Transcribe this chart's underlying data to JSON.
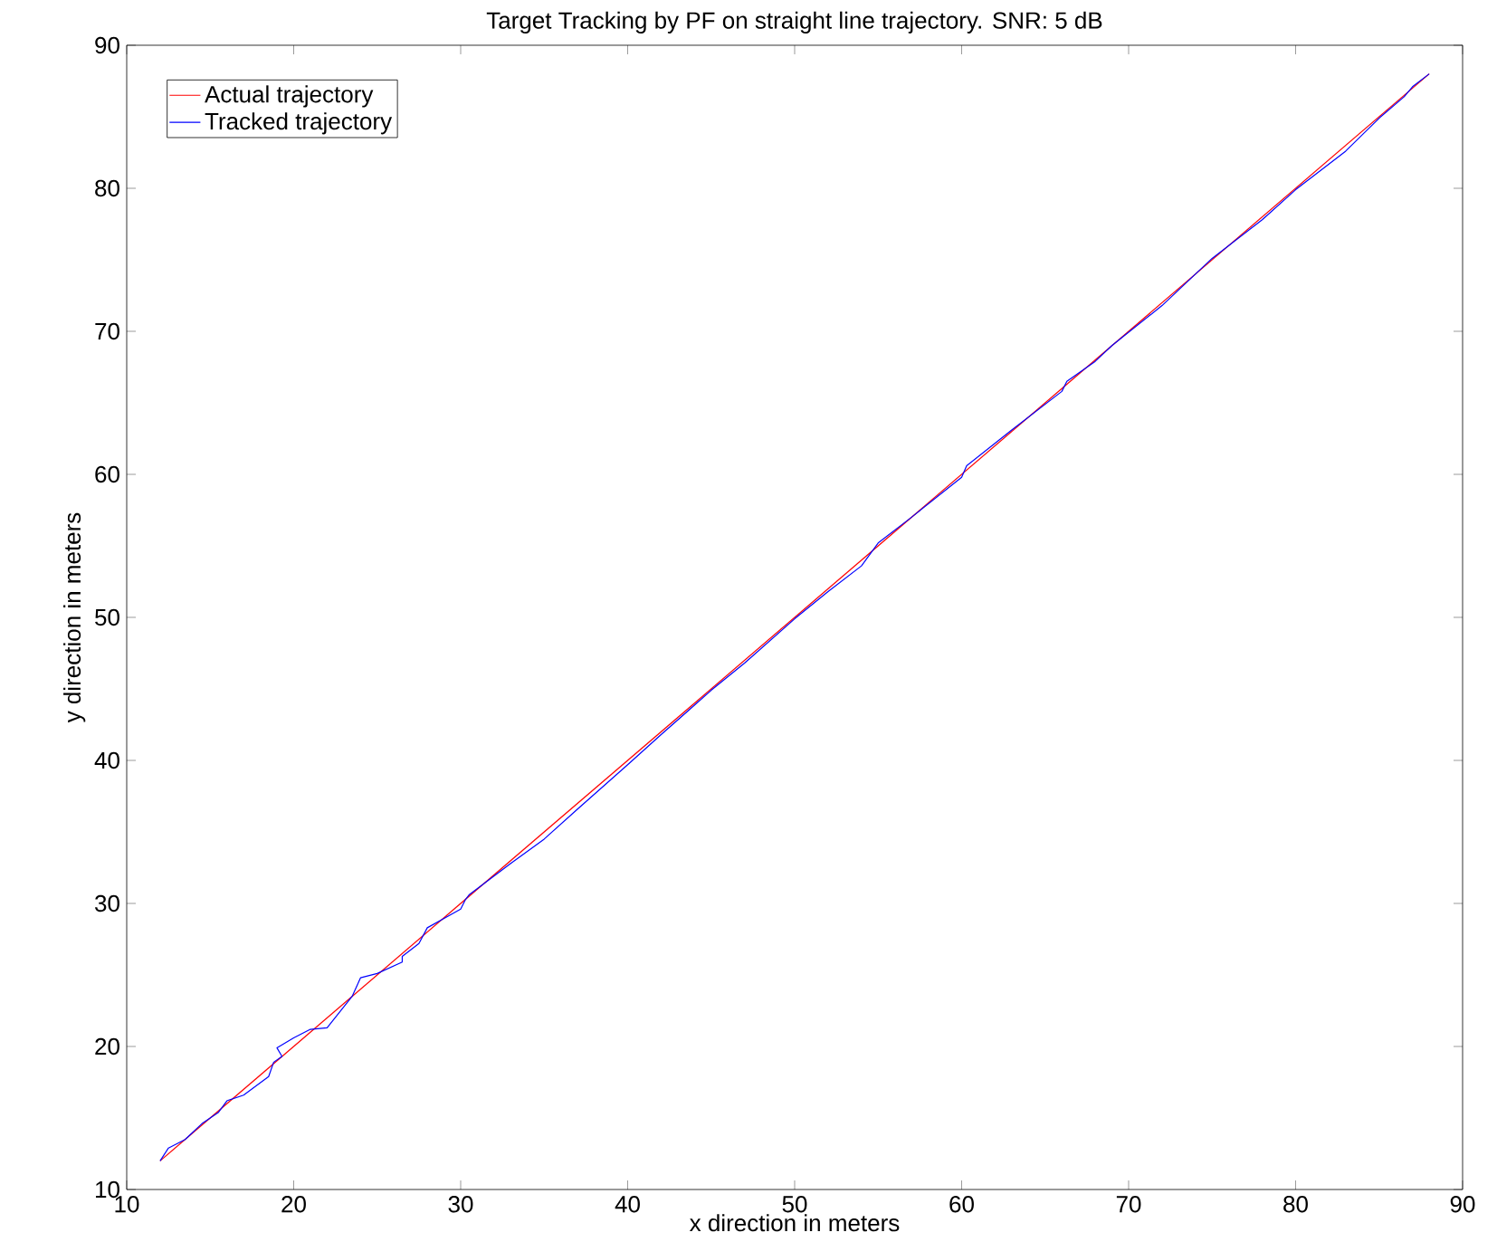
{
  "chart_data": {
    "type": "line",
    "title": "Target Tracking by PF on straight line trajectory. SNR: 5 dB",
    "xlabel": "x direction in meters",
    "ylabel": "y direction in meters",
    "xlim": [
      10,
      90
    ],
    "ylim": [
      10,
      90
    ],
    "xticks": [
      10,
      20,
      30,
      40,
      50,
      60,
      70,
      80,
      90
    ],
    "yticks": [
      10,
      20,
      30,
      40,
      50,
      60,
      70,
      80,
      90
    ],
    "legend": "top left",
    "grid": false,
    "series": [
      {
        "name": "Actual trajectory",
        "color": "#ff0000",
        "x": [
          12,
          88
        ],
        "values": [
          12,
          88
        ]
      },
      {
        "name": "Tracked trajectory",
        "color": "#0000ff",
        "x": [
          12,
          12.5,
          13.5,
          14.5,
          15.5,
          16,
          17,
          18.5,
          18.8,
          19.3,
          19,
          20,
          21,
          22,
          23.5,
          24,
          25,
          26.5,
          26.5,
          27.5,
          28,
          30,
          30.3,
          30.5,
          33,
          35,
          37,
          40,
          42,
          45,
          47,
          50,
          52,
          54,
          55,
          57,
          60,
          60.3,
          63,
          66,
          66.3,
          68,
          69,
          72,
          75,
          78,
          80,
          83,
          85,
          86.5,
          87,
          88
        ],
        "values": [
          12,
          12.9,
          13.5,
          14.6,
          15.4,
          16.2,
          16.6,
          17.9,
          18.9,
          19.3,
          19.9,
          20.6,
          21.2,
          21.3,
          23.5,
          24.8,
          25.1,
          25.9,
          26.3,
          27.2,
          28.3,
          29.6,
          30.3,
          30.6,
          32.8,
          34.5,
          36.6,
          39.7,
          41.8,
          44.9,
          46.8,
          49.9,
          51.8,
          53.6,
          55.2,
          57.0,
          59.8,
          60.6,
          63.1,
          65.8,
          66.5,
          67.9,
          69.0,
          71.8,
          75.1,
          77.8,
          79.9,
          82.6,
          84.9,
          86.4,
          87.1,
          88
        ]
      }
    ]
  }
}
